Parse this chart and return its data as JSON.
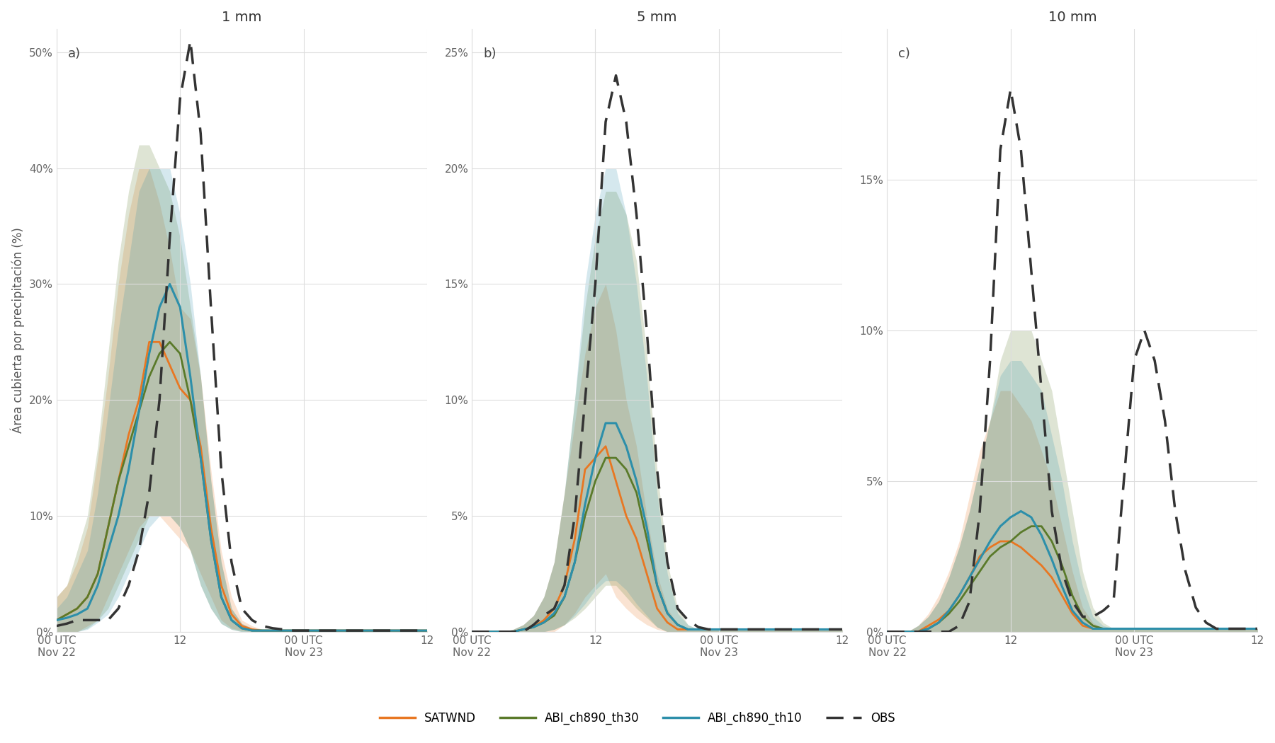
{
  "title_a": "1 mm",
  "title_b": "5 mm",
  "title_c": "10 mm",
  "label_a": "a)",
  "label_b": "b)",
  "label_c": "c)",
  "ylabel": "Área cubierta por precipitación (%)",
  "xlabel_ticks": [
    "00 UTC\nNov 22",
    "12",
    "00 UTC\nNov 23",
    "12"
  ],
  "ylim_a": [
    0,
    0.52
  ],
  "ylim_b": [
    0,
    0.26
  ],
  "ylim_c": [
    0,
    0.2
  ],
  "yticks_a": [
    0.0,
    0.1,
    0.2,
    0.3,
    0.4,
    0.5
  ],
  "yticks_b": [
    0.0,
    0.05,
    0.1,
    0.15,
    0.2,
    0.25
  ],
  "yticks_c": [
    0.0,
    0.05,
    0.1,
    0.15
  ],
  "ytick_labels_a": [
    "0%",
    "10%",
    "20%",
    "30%",
    "40%",
    "50%"
  ],
  "ytick_labels_b": [
    "0%",
    "5%",
    "10%",
    "15%",
    "20%",
    "25%"
  ],
  "ytick_labels_c": [
    "0%",
    "5%",
    "10%",
    "15%"
  ],
  "color_satwnd": "#E87722",
  "color_abi30": "#5a7a2a",
  "color_abi10": "#2d8faa",
  "color_obs": "#333333",
  "fill_alpha": 0.2,
  "bg_color": "#ffffff",
  "grid_color": "#dddddd",
  "legend_labels": [
    "SATWND",
    "ABI_ch890_th30",
    "ABI_ch890_th10",
    "OBS"
  ],
  "xtick_positions": [
    0,
    12,
    24,
    36
  ]
}
